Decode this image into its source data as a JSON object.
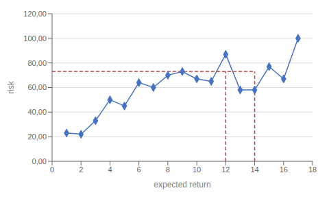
{
  "chart_data": {
    "type": "line",
    "xlabel": "expected return",
    "ylabel": "risk",
    "xlim": [
      0,
      18
    ],
    "ylim": [
      0,
      120
    ],
    "xticks": [
      0,
      2,
      4,
      6,
      8,
      10,
      12,
      14,
      16,
      18
    ],
    "yticks": [
      {
        "value": 0,
        "label": "0,00"
      },
      {
        "value": 20,
        "label": "20,00"
      },
      {
        "value": 40,
        "label": "40,00"
      },
      {
        "value": 60,
        "label": "60,00"
      },
      {
        "value": 80,
        "label": "80,00"
      },
      {
        "value": 100,
        "label": "100,00"
      },
      {
        "value": 120,
        "label": "120,00"
      }
    ],
    "grid": "y",
    "series": [
      {
        "color": "#4472C4",
        "marker": "diamond",
        "line_style": "solid",
        "x": [
          1,
          2,
          3,
          4,
          5,
          6,
          7,
          8,
          9,
          10,
          11,
          12,
          13,
          14,
          15,
          16,
          17
        ],
        "values": [
          23,
          22,
          33,
          50,
          45,
          64,
          60,
          70,
          73,
          67,
          65,
          87,
          58,
          58,
          77,
          67,
          100
        ]
      },
      {
        "color": "#C0504D",
        "line_style": "dashed",
        "x": [
          0,
          14
        ],
        "values": [
          73,
          73
        ]
      },
      {
        "color": "#C0504D",
        "line_style": "dashed",
        "x": [
          12,
          12
        ],
        "values": [
          0,
          73
        ]
      },
      {
        "color": "#C0504D",
        "line_style": "dashed",
        "x": [
          14,
          14
        ],
        "values": [
          0,
          73
        ]
      }
    ]
  }
}
